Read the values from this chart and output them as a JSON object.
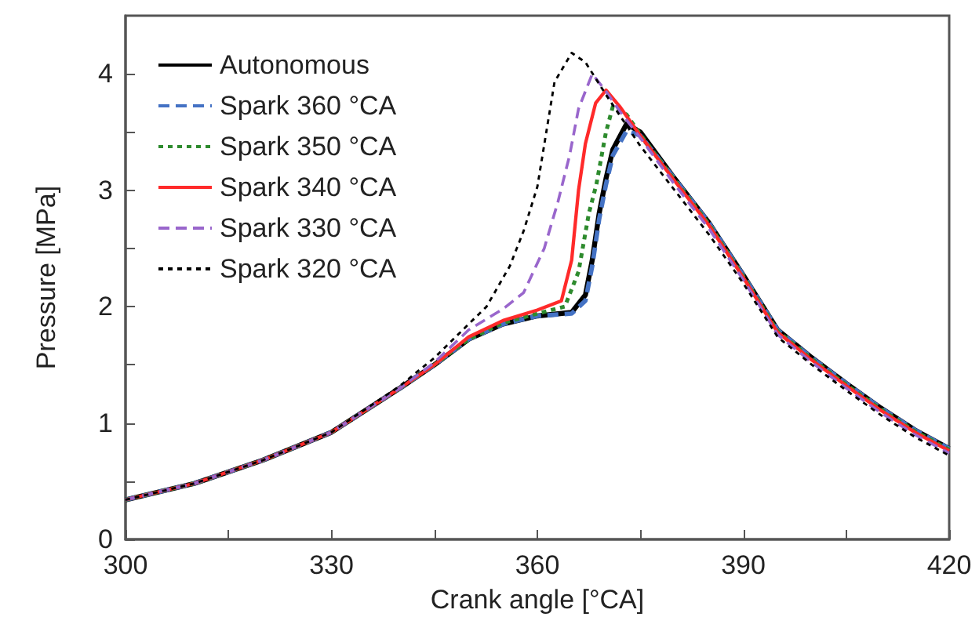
{
  "chart_data": {
    "type": "line",
    "xlabel": "Crank angle [°CA]",
    "ylabel": "Pressure [MPa]",
    "xlim": [
      300,
      420
    ],
    "xticks": [
      300,
      {
        "value": 315,
        "label": null
      },
      330,
      {
        "value": 345,
        "label": null
      },
      360,
      {
        "value": 375,
        "label": null
      },
      390,
      {
        "value": 405,
        "label": null
      },
      420
    ],
    "ylim": [
      0,
      4.5
    ],
    "yticks": [
      0,
      {
        "value": 0.5,
        "label": null
      },
      1,
      {
        "value": 1.5,
        "label": null
      },
      2,
      {
        "value": 2.5,
        "label": null
      },
      3,
      {
        "value": 3.5,
        "label": null
      },
      4
    ],
    "grid": false,
    "legend": "top left",
    "marker": "none",
    "series": [
      {
        "name": "Autonomous",
        "color": "#000000",
        "line_style": "solid",
        "x": [
          300,
          310,
          320,
          330,
          340,
          345,
          350,
          355,
          360,
          365,
          367,
          368,
          369,
          370,
          371,
          373,
          375,
          380,
          385,
          390,
          395,
          400,
          405,
          410,
          415,
          420
        ],
        "values": [
          0.34,
          0.48,
          0.68,
          0.92,
          1.3,
          1.5,
          1.72,
          1.85,
          1.92,
          1.95,
          2.1,
          2.4,
          2.8,
          3.1,
          3.35,
          3.57,
          3.5,
          3.1,
          2.72,
          2.27,
          1.8,
          1.56,
          1.34,
          1.13,
          0.94,
          0.78
        ]
      },
      {
        "name": "Spark 360 °CA",
        "color": "#4472c4",
        "line_style": "dashed",
        "x": [
          300,
          310,
          320,
          330,
          340,
          345,
          350,
          355,
          360,
          365,
          367,
          368,
          369,
          370,
          371,
          373,
          375,
          380,
          385,
          390,
          395,
          400,
          405,
          410,
          415,
          420
        ],
        "values": [
          0.34,
          0.48,
          0.68,
          0.92,
          1.3,
          1.5,
          1.72,
          1.85,
          1.92,
          1.94,
          2.05,
          2.35,
          2.75,
          3.05,
          3.3,
          3.51,
          3.47,
          3.1,
          2.72,
          2.27,
          1.8,
          1.56,
          1.34,
          1.13,
          0.94,
          0.78
        ]
      },
      {
        "name": "Spark 350 °CA",
        "color": "#2e8b2e",
        "line_style": "dotted",
        "x": [
          300,
          310,
          320,
          330,
          340,
          345,
          350,
          355,
          360,
          364,
          366,
          367.5,
          368.6,
          370,
          371,
          373,
          375,
          380,
          385,
          390,
          395,
          400,
          405,
          410,
          415,
          420
        ],
        "values": [
          0.34,
          0.48,
          0.68,
          0.92,
          1.3,
          1.5,
          1.72,
          1.86,
          1.94,
          2.0,
          2.3,
          2.8,
          3.05,
          3.5,
          3.72,
          3.65,
          3.48,
          3.09,
          2.71,
          2.26,
          1.79,
          1.55,
          1.33,
          1.12,
          0.93,
          0.77
        ]
      },
      {
        "name": "Spark 340 °CA",
        "color": "#ff2a2a",
        "line_style": "solid",
        "x": [
          300,
          310,
          320,
          330,
          340,
          345,
          350,
          355,
          360,
          363.5,
          365,
          366,
          367,
          368.5,
          370,
          372,
          375,
          380,
          385,
          390,
          395,
          400,
          405,
          410,
          415,
          420
        ],
        "values": [
          0.34,
          0.48,
          0.68,
          0.92,
          1.3,
          1.5,
          1.74,
          1.88,
          1.97,
          2.05,
          2.4,
          3.0,
          3.4,
          3.75,
          3.86,
          3.72,
          3.47,
          3.08,
          2.7,
          2.25,
          1.78,
          1.54,
          1.32,
          1.11,
          0.92,
          0.76
        ]
      },
      {
        "name": "Spark 330 °CA",
        "color": "#9966cc",
        "line_style": "dashed",
        "x": [
          300,
          310,
          320,
          330,
          340,
          345,
          350,
          355,
          358,
          361,
          363,
          364.7,
          366,
          368,
          370,
          372,
          375,
          380,
          385,
          390,
          395,
          400,
          405,
          410,
          415,
          420
        ],
        "values": [
          0.34,
          0.48,
          0.68,
          0.92,
          1.3,
          1.52,
          1.8,
          1.98,
          2.12,
          2.5,
          2.9,
          3.3,
          3.7,
          4.0,
          3.85,
          3.68,
          3.45,
          3.05,
          2.67,
          2.23,
          1.76,
          1.52,
          1.3,
          1.09,
          0.9,
          0.74
        ]
      },
      {
        "name": "Spark 320 °CA",
        "color": "#000000",
        "line_style": "dotted",
        "x": [
          300,
          310,
          320,
          330,
          340,
          345,
          350,
          352.6,
          356,
          358,
          360,
          362.5,
          365,
          367,
          370,
          375,
          380,
          385,
          390,
          395,
          400,
          405,
          410,
          415,
          420
        ],
        "values": [
          0.34,
          0.48,
          0.68,
          0.92,
          1.32,
          1.56,
          1.85,
          2.0,
          2.35,
          2.65,
          3.03,
          3.93,
          4.18,
          4.1,
          3.82,
          3.38,
          3.0,
          2.62,
          2.2,
          1.74,
          1.5,
          1.28,
          1.07,
          0.88,
          0.72
        ]
      }
    ]
  }
}
